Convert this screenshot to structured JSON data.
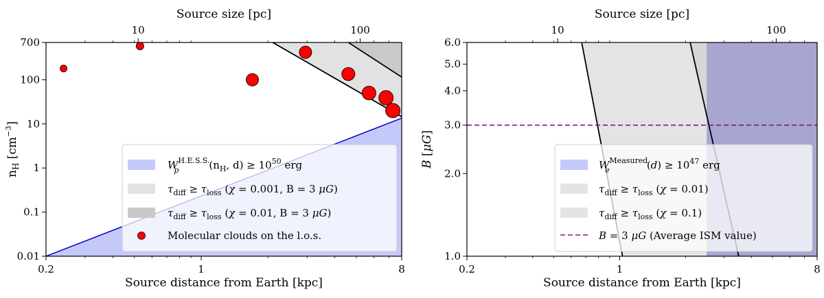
{
  "chart_data": [
    {
      "type": "scatter",
      "xlabel": "Source distance from Earth [kpc]",
      "ylabel": "n_H [cm^-3]",
      "top_xlabel": "Source size [pc]",
      "xscale": "log",
      "yscale": "log",
      "xlim": [
        0.2,
        8
      ],
      "ylim": [
        0.01,
        700
      ],
      "xticks": [
        {
          "v": 0.2,
          "label": "0.2"
        },
        {
          "v": 1,
          "label": "1"
        },
        {
          "v": 8,
          "label": "8"
        }
      ],
      "yticks": [
        {
          "v": 0.01,
          "label": "0.01"
        },
        {
          "v": 0.1,
          "label": "0.1"
        },
        {
          "v": 1,
          "label": "1"
        },
        {
          "v": 10,
          "label": "10"
        },
        {
          "v": 100,
          "label": "100"
        },
        {
          "v": 700,
          "label": "700"
        }
      ],
      "top_ticks": [
        {
          "v": 0.52,
          "label": "10"
        },
        {
          "v": 5.2,
          "label": "100"
        }
      ],
      "regions": [
        {
          "name": "hess-energy",
          "label": "W_p^H.E.S.S.(n_H, d) ≥ 10^50 erg",
          "color": "#c4c9fa",
          "edge": "#0000cc",
          "boundary": [
            [
              0.2,
              0.01
            ],
            [
              8,
              13.5
            ]
          ]
        },
        {
          "name": "tdiff-chi0001",
          "label": "τ_diff ≥ τ_loss (χ = 0.001, B = 3 μG)",
          "color": "#e2e2e2",
          "edge": "#000000",
          "boundary": [
            [
              2.1,
              700
            ],
            [
              8,
              14.5
            ]
          ]
        },
        {
          "name": "tdiff-chi001",
          "label": "τ_diff ≥ τ_loss (χ = 0.01, B = 3 μG)",
          "color": "#c9c9c9",
          "edge": "#000000",
          "boundary": [
            [
              4.6,
              700
            ],
            [
              8,
              115
            ]
          ]
        }
      ],
      "points": [
        {
          "x": 0.24,
          "y": 180,
          "size": 5
        },
        {
          "x": 0.53,
          "y": 580,
          "size": 5.5
        },
        {
          "x": 1.7,
          "y": 100,
          "size": 9
        },
        {
          "x": 2.95,
          "y": 420,
          "size": 9
        },
        {
          "x": 4.6,
          "y": 135,
          "size": 9.5
        },
        {
          "x": 5.7,
          "y": 50,
          "size": 10
        },
        {
          "x": 6.8,
          "y": 39,
          "size": 10.5
        },
        {
          "x": 7.3,
          "y": 20,
          "size": 10.5
        }
      ],
      "point_color": "#ff0000",
      "point_label": "Molecular clouds on the l.o.s.",
      "legend_position": "lower-right"
    },
    {
      "type": "area",
      "xlabel": "Source distance from Earth [kpc]",
      "ylabel": "B [μG]",
      "top_xlabel": "Source size [pc]",
      "xscale": "log",
      "yscale": "log",
      "xlim": [
        0.2,
        8
      ],
      "ylim": [
        1.0,
        6.0
      ],
      "xticks": [
        {
          "v": 0.2,
          "label": "0.2"
        },
        {
          "v": 1,
          "label": "1"
        },
        {
          "v": 8,
          "label": "8"
        }
      ],
      "yticks": [
        {
          "v": 1.0,
          "label": "1.0"
        },
        {
          "v": 2.0,
          "label": "2.0"
        },
        {
          "v": 3.0,
          "label": "3.0"
        },
        {
          "v": 4.0,
          "label": "4.0"
        },
        {
          "v": 5.0,
          "label": "5.0"
        },
        {
          "v": 6.0,
          "label": "6.0"
        }
      ],
      "top_ticks": [
        {
          "v": 0.52,
          "label": "10"
        },
        {
          "v": 5.2,
          "label": "100"
        }
      ],
      "regions": [
        {
          "name": "tdiff-chi001",
          "label": "τ_diff ≥ τ_loss (χ = 0.01)",
          "color": "#e4e4e4",
          "boundary": [
            [
              0.67,
              6.0
            ],
            [
              1.03,
              1.0
            ]
          ]
        },
        {
          "name": "tdiff-chi01",
          "label": "τ_diff ≥ τ_loss (χ = 0.1)",
          "color": "#d6d6d6",
          "boundary": [
            [
              2.1,
              6.0
            ],
            [
              3.5,
              1.0
            ]
          ]
        },
        {
          "name": "measured-energy",
          "label": "W_e^Measured(d) ≥ 10^47 erg",
          "color": "#a6a6d0",
          "x_min": 2.5
        }
      ],
      "hline": {
        "y": 3.0,
        "color": "#7b1a7b",
        "label": "B = 3 μG (Average ISM value)"
      },
      "legend_position": "lower-right"
    }
  ]
}
